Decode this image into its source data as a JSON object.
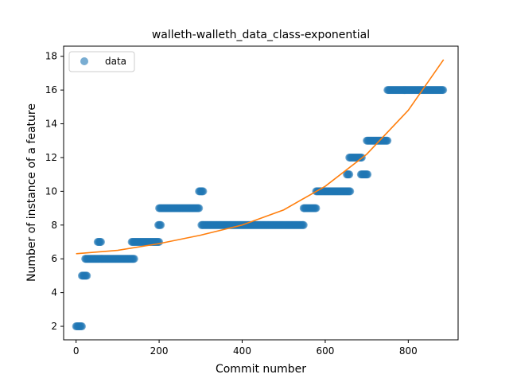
{
  "chart_data": {
    "type": "scatter",
    "title": "walleth-walleth_data_class-exponential",
    "xlabel": "Commit number",
    "ylabel": "Number of instance of a feature",
    "xlim": [
      -30,
      920
    ],
    "ylim": [
      1.2,
      18.6
    ],
    "xticks": [
      0,
      200,
      400,
      600,
      800
    ],
    "yticks": [
      2,
      4,
      6,
      8,
      10,
      12,
      14,
      16,
      18
    ],
    "grid": false,
    "legend": {
      "placement": "top-left",
      "entries": [
        "data"
      ]
    },
    "colors": {
      "data": "#1f77b4",
      "fit": "#ff7f0e"
    },
    "series": [
      {
        "name": "data",
        "kind": "scatter",
        "segments": [
          {
            "x_start": 0,
            "x_end": 14,
            "y": 2
          },
          {
            "x_start": 14,
            "x_end": 26,
            "y": 5
          },
          {
            "x_start": 22,
            "x_end": 56,
            "y": 6
          },
          {
            "x_start": 52,
            "x_end": 60,
            "y": 7
          },
          {
            "x_start": 58,
            "x_end": 140,
            "y": 6
          },
          {
            "x_start": 134,
            "x_end": 200,
            "y": 7
          },
          {
            "x_start": 198,
            "x_end": 204,
            "y": 8
          },
          {
            "x_start": 200,
            "x_end": 296,
            "y": 9
          },
          {
            "x_start": 296,
            "x_end": 306,
            "y": 10
          },
          {
            "x_start": 302,
            "x_end": 548,
            "y": 8
          },
          {
            "x_start": 548,
            "x_end": 578,
            "y": 9
          },
          {
            "x_start": 578,
            "x_end": 660,
            "y": 10
          },
          {
            "x_start": 652,
            "x_end": 658,
            "y": 11
          },
          {
            "x_start": 658,
            "x_end": 688,
            "y": 12
          },
          {
            "x_start": 686,
            "x_end": 702,
            "y": 11
          },
          {
            "x_start": 700,
            "x_end": 750,
            "y": 13
          },
          {
            "x_start": 750,
            "x_end": 885,
            "y": 16
          }
        ]
      },
      {
        "name": "",
        "kind": "line",
        "x": [
          0,
          100,
          200,
          300,
          400,
          500,
          600,
          700,
          800,
          885
        ],
        "y": [
          6.3,
          6.5,
          6.9,
          7.4,
          8.0,
          8.9,
          10.3,
          12.2,
          14.8,
          17.8
        ]
      }
    ]
  }
}
